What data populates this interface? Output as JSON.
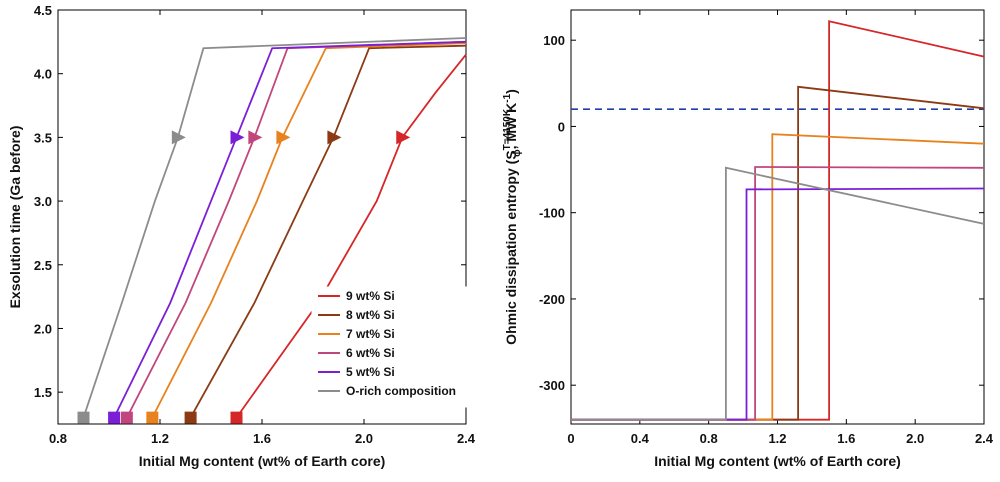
{
  "chart_data": [
    {
      "type": "line",
      "xlabel": "Initial Mg content (wt% of Earth core)",
      "ylabel": "Exsolution time (Ga before)",
      "xlim": [
        0.8,
        2.4
      ],
      "ylim": [
        1.25,
        4.5
      ],
      "xticks": [
        0.8,
        1.2,
        1.6,
        2.0,
        2.4
      ],
      "xtick_labels": [
        "0.8",
        "1.2",
        "1.6",
        "2.0",
        "2.4"
      ],
      "yticks": [
        1.5,
        2.0,
        2.5,
        3.0,
        3.5,
        4.0,
        4.5
      ],
      "ytick_labels": [
        "1.5",
        "2.0",
        "2.5",
        "3.0",
        "3.5",
        "4.0",
        "4.5"
      ],
      "grid": false,
      "legend_position": "lower-right",
      "series": [
        {
          "name": "9 wt% Si",
          "color": "#d62728",
          "points": [
            [
              1.5,
              1.3
            ],
            [
              1.82,
              2.2
            ],
            [
              2.05,
              3.0
            ],
            [
              2.15,
              3.5
            ],
            [
              2.28,
              3.85
            ],
            [
              2.4,
              4.15
            ]
          ],
          "marker_point": [
            2.15,
            3.5
          ],
          "end_point": [
            1.5,
            1.3
          ]
        },
        {
          "name": "8 wt% Si",
          "color": "#8b3a14",
          "points": [
            [
              1.32,
              1.3
            ],
            [
              1.57,
              2.2
            ],
            [
              1.76,
              3.0
            ],
            [
              1.88,
              3.5
            ],
            [
              2.02,
              4.2
            ],
            [
              2.4,
              4.22
            ]
          ],
          "marker_point": [
            1.88,
            3.5
          ],
          "end_point": [
            1.32,
            1.3
          ]
        },
        {
          "name": "7 wt% Si",
          "color": "#e8821e",
          "points": [
            [
              1.17,
              1.3
            ],
            [
              1.4,
              2.2
            ],
            [
              1.58,
              3.0
            ],
            [
              1.68,
              3.5
            ],
            [
              1.85,
              4.2
            ],
            [
              2.4,
              4.24
            ]
          ],
          "marker_point": [
            1.68,
            3.5
          ],
          "end_point": [
            1.17,
            1.3
          ]
        },
        {
          "name": "6 wt% Si",
          "color": "#c2467e",
          "points": [
            [
              1.07,
              1.3
            ],
            [
              1.3,
              2.2
            ],
            [
              1.47,
              3.0
            ],
            [
              1.57,
              3.5
            ],
            [
              1.7,
              4.2
            ],
            [
              2.4,
              4.25
            ]
          ],
          "marker_point": [
            1.57,
            3.5
          ],
          "end_point": [
            1.07,
            1.3
          ]
        },
        {
          "name": "5 wt% Si",
          "color": "#7b1fd6",
          "points": [
            [
              1.02,
              1.3
            ],
            [
              1.24,
              2.2
            ],
            [
              1.4,
              3.0
            ],
            [
              1.5,
              3.5
            ],
            [
              1.64,
              4.2
            ],
            [
              2.4,
              4.25
            ]
          ],
          "marker_point": [
            1.5,
            3.5
          ],
          "end_point": [
            1.02,
            1.3
          ]
        },
        {
          "name": "O-rich composition",
          "color": "#8c8c8c",
          "points": [
            [
              0.9,
              1.3
            ],
            [
              1.05,
              2.2
            ],
            [
              1.18,
              3.0
            ],
            [
              1.27,
              3.5
            ],
            [
              1.37,
              4.2
            ],
            [
              2.4,
              4.28
            ]
          ],
          "marker_point": [
            1.27,
            3.5
          ],
          "end_point": [
            0.9,
            1.3
          ]
        }
      ]
    },
    {
      "type": "line",
      "xlabel": "Initial Mg content (wt% of Earth core)",
      "ylabel": "Ohmic dissipation entropy (S",
      "ylabel_sub": "ϕ",
      "ylabel_sup": "T=4150K",
      "ylabel_suffix": ", MW K",
      "ylabel_suffix_sup": "-1",
      "ylabel_close": ")",
      "xlim": [
        0,
        2.4
      ],
      "ylim": [
        -345,
        135
      ],
      "xticks": [
        0,
        0.4,
        0.8,
        1.2,
        1.6,
        2.0,
        2.4
      ],
      "xtick_labels": [
        "0",
        "0.4",
        "0.8",
        "1.2",
        "1.6",
        "2.0",
        "2.4"
      ],
      "yticks": [
        -300,
        -200,
        -100,
        0,
        100
      ],
      "ytick_labels": [
        "-300",
        "-200",
        "-100",
        "0",
        "100"
      ],
      "grid": false,
      "reference_line": {
        "y": 20,
        "color": "#1f3fa8",
        "style": "dashed"
      },
      "series": [
        {
          "name": "9 wt% Si",
          "color": "#d62728",
          "points": [
            [
              0,
              -340
            ],
            [
              1.5,
              -340
            ],
            [
              1.5,
              122
            ],
            [
              2.4,
              81
            ]
          ]
        },
        {
          "name": "8 wt% Si",
          "color": "#8b3a14",
          "points": [
            [
              0,
              -340
            ],
            [
              1.32,
              -340
            ],
            [
              1.32,
              46
            ],
            [
              2.4,
              21
            ]
          ]
        },
        {
          "name": "7 wt% Si",
          "color": "#e8821e",
          "points": [
            [
              0,
              -340
            ],
            [
              1.17,
              -340
            ],
            [
              1.17,
              -9
            ],
            [
              2.4,
              -20
            ]
          ]
        },
        {
          "name": "6 wt% Si",
          "color": "#c2467e",
          "points": [
            [
              0,
              -340
            ],
            [
              1.07,
              -340
            ],
            [
              1.07,
              -47
            ],
            [
              2.4,
              -48
            ]
          ]
        },
        {
          "name": "5 wt% Si",
          "color": "#7b1fd6",
          "points": [
            [
              0,
              -340
            ],
            [
              1.02,
              -340
            ],
            [
              1.02,
              -73
            ],
            [
              2.4,
              -72
            ]
          ]
        },
        {
          "name": "O-rich composition",
          "color": "#8c8c8c",
          "points": [
            [
              0,
              -340
            ],
            [
              0.9,
              -340
            ],
            [
              0.9,
              -48
            ],
            [
              2.4,
              -113
            ]
          ]
        }
      ]
    }
  ]
}
